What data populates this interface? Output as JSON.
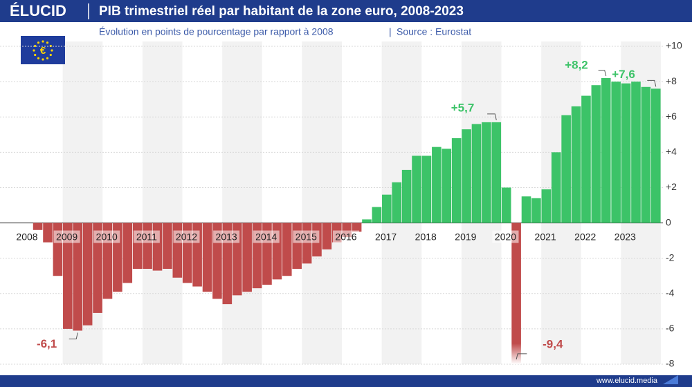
{
  "chart_data": {
    "type": "bar",
    "brand": "ÉLUCID",
    "title": "PIB trimestriel réel par habitant de la zone euro, 2008-2023",
    "subtitle": "Évolution en points de pourcentage par rapport à 2008",
    "source": "Source : Eurostat",
    "website": "www.elucid.media",
    "categories": [
      "2008",
      null,
      null,
      null,
      "2009",
      null,
      null,
      null,
      "2010",
      null,
      null,
      null,
      "2011",
      null,
      null,
      null,
      "2012",
      null,
      null,
      null,
      "2013",
      null,
      null,
      null,
      "2014",
      null,
      null,
      null,
      "2015",
      null,
      null,
      null,
      "2016",
      null,
      null,
      null,
      "2017",
      null,
      null,
      null,
      "2018",
      null,
      null,
      null,
      "2019",
      null,
      null,
      null,
      "2020",
      null,
      null,
      null,
      "2021",
      null,
      null,
      null,
      "2022",
      null,
      null,
      null,
      "2023",
      null,
      null,
      null
    ],
    "values": [
      0,
      -0.4,
      -1.1,
      -3.0,
      -6.0,
      -6.1,
      -5.8,
      -5.1,
      -4.3,
      -3.9,
      -3.4,
      -2.6,
      -2.6,
      -2.7,
      -2.6,
      -3.1,
      -3.4,
      -3.6,
      -3.9,
      -4.3,
      -4.6,
      -4.1,
      -3.9,
      -3.7,
      -3.5,
      -3.2,
      -3.0,
      -2.6,
      -2.3,
      -1.9,
      -1.5,
      -1.1,
      -0.8,
      -0.5,
      0.2,
      0.9,
      1.6,
      2.3,
      3.0,
      3.8,
      3.8,
      4.3,
      4.2,
      4.8,
      5.3,
      5.6,
      5.7,
      5.7,
      2.0,
      -9.4,
      1.5,
      1.4,
      1.9,
      4.0,
      6.1,
      6.6,
      7.2,
      7.8,
      8.2,
      8.0,
      7.9,
      8.0,
      7.7,
      7.6
    ],
    "value_labels": [
      null,
      null,
      null,
      null,
      null,
      "-6,1",
      null,
      null,
      null,
      null,
      null,
      null,
      null,
      null,
      null,
      null,
      null,
      null,
      null,
      null,
      null,
      null,
      null,
      null,
      null,
      null,
      null,
      null,
      null,
      null,
      null,
      null,
      null,
      null,
      null,
      null,
      null,
      null,
      null,
      null,
      null,
      null,
      null,
      null,
      null,
      null,
      null,
      "+5,7",
      null,
      "-9,4",
      null,
      null,
      null,
      null,
      null,
      null,
      null,
      null,
      "+8,2",
      null,
      null,
      null,
      null,
      "+7,6"
    ],
    "color": "#3cc368",
    "negative_color": "#c04b4b",
    "ylim": [
      -8,
      10
    ],
    "yticks": [
      -8,
      -6,
      -4,
      -2,
      0,
      {
        "value": 2,
        "label": "+2"
      },
      {
        "value": 4,
        "label": "+4"
      },
      {
        "value": 6,
        "label": "+6"
      },
      {
        "value": 8,
        "label": "+8"
      },
      {
        "value": 10,
        "label": "+10"
      }
    ],
    "grid": true
  }
}
